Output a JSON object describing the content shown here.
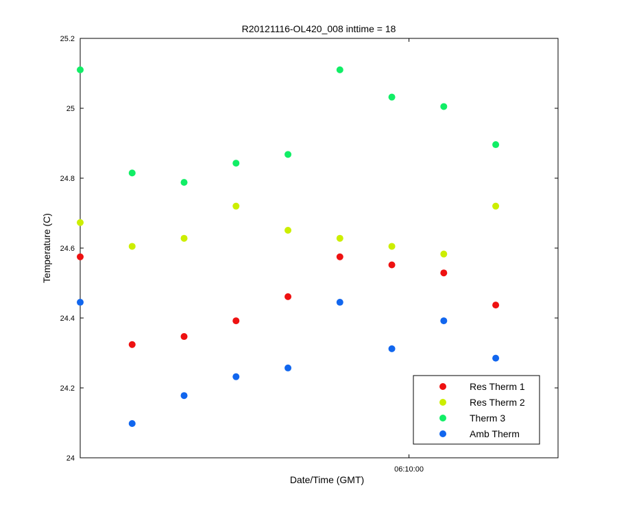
{
  "chart_data": {
    "type": "scatter",
    "title": "R20121116-OL420_008 inttime = 18",
    "xlabel": "Date/Time (GMT)",
    "ylabel": "Temperature (C)",
    "ylim": [
      24,
      25.2
    ],
    "yticks": [
      24,
      24.2,
      24.4,
      24.6,
      24.8,
      25,
      25.2
    ],
    "ytick_labels": [
      "24",
      "24.2",
      "24.4",
      "24.6",
      "24.8",
      "25",
      "25.2"
    ],
    "xlim": [
      0,
      9.2
    ],
    "xticks": [
      {
        "value": 6.33,
        "label": "06:10:00"
      }
    ],
    "grid": false,
    "legend_position": "lower-right",
    "x": [
      0,
      1,
      2,
      3,
      4,
      5,
      6,
      7,
      8
    ],
    "series": [
      {
        "name": "Res Therm 1",
        "color": "#ee1111",
        "values": [
          24.575,
          24.324,
          24.347,
          24.392,
          24.461,
          24.575,
          24.552,
          24.529,
          24.437
        ]
      },
      {
        "name": "Res Therm 2",
        "color": "#ccee00",
        "values": [
          24.673,
          24.605,
          24.628,
          24.72,
          24.651,
          24.628,
          24.605,
          24.583,
          24.72
        ]
      },
      {
        "name": "Therm 3",
        "color": "#11ee66",
        "values": [
          25.11,
          24.815,
          24.788,
          24.843,
          24.868,
          25.11,
          25.032,
          25.005,
          24.896
        ]
      },
      {
        "name": "Amb Therm",
        "color": "#1166ee",
        "values": [
          24.445,
          24.098,
          24.178,
          24.232,
          24.257,
          24.445,
          24.312,
          24.392,
          24.285
        ]
      }
    ]
  }
}
